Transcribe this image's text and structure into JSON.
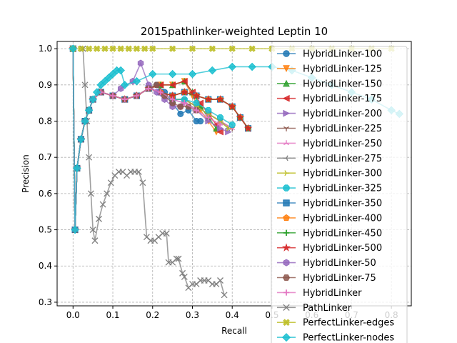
{
  "chart_data": {
    "type": "line",
    "title": "2015pathlinker-weighted Leptin 10",
    "xlabel": "Recall",
    "ylabel": "Precision",
    "xlim": [
      -0.04,
      0.85
    ],
    "ylim": [
      0.29,
      1.02
    ],
    "xticks": [
      "0.0",
      "0.1",
      "0.2",
      "0.3",
      "0.4",
      "0.5",
      "0.6",
      "0.7",
      "0.8"
    ],
    "xtick_values": [
      0.0,
      0.1,
      0.2,
      0.3,
      0.4,
      0.5,
      0.6,
      0.7,
      0.8
    ],
    "yticks": [
      "0.3",
      "0.4",
      "0.5",
      "0.6",
      "0.7",
      "0.8",
      "0.9",
      "1.0"
    ],
    "ytick_values": [
      0.3,
      0.4,
      0.5,
      0.6,
      0.7,
      0.8,
      0.9,
      1.0
    ],
    "grid": true,
    "legend_position": "right",
    "series": [
      {
        "name": "HybridLinker-100",
        "color": "#1f77b4",
        "marker": "circle",
        "x": [
          0.0,
          0.005,
          0.01,
          0.02,
          0.03,
          0.04,
          0.05,
          0.07,
          0.1,
          0.13,
          0.16,
          0.19,
          0.21,
          0.23,
          0.25,
          0.27,
          0.29,
          0.31,
          0.32
        ],
        "y": [
          1.0,
          0.5,
          0.67,
          0.75,
          0.8,
          0.83,
          0.86,
          0.88,
          0.87,
          0.86,
          0.87,
          0.89,
          0.9,
          0.88,
          0.85,
          0.82,
          0.83,
          0.8,
          0.8
        ]
      },
      {
        "name": "HybridLinker-125",
        "color": "#ff7f0e",
        "marker": "triangle-down",
        "x": [
          0.0,
          0.005,
          0.01,
          0.02,
          0.03,
          0.04,
          0.05,
          0.07,
          0.1,
          0.13,
          0.16,
          0.19,
          0.22,
          0.25,
          0.28,
          0.3,
          0.32,
          0.34,
          0.36
        ],
        "y": [
          1.0,
          0.5,
          0.67,
          0.75,
          0.8,
          0.83,
          0.86,
          0.88,
          0.87,
          0.86,
          0.87,
          0.89,
          0.9,
          0.9,
          0.91,
          0.87,
          0.83,
          0.8,
          0.77
        ]
      },
      {
        "name": "HybridLinker-150",
        "color": "#2ca02c",
        "marker": "triangle-up",
        "x": [
          0.0,
          0.005,
          0.01,
          0.02,
          0.03,
          0.04,
          0.05,
          0.07,
          0.1,
          0.13,
          0.16,
          0.19,
          0.22,
          0.25,
          0.28,
          0.3,
          0.32,
          0.34,
          0.36
        ],
        "y": [
          1.0,
          0.5,
          0.67,
          0.75,
          0.8,
          0.83,
          0.86,
          0.88,
          0.87,
          0.86,
          0.87,
          0.89,
          0.9,
          0.9,
          0.91,
          0.88,
          0.84,
          0.81,
          0.78
        ]
      },
      {
        "name": "HybridLinker-175",
        "color": "#d62728",
        "marker": "triangle-left",
        "x": [
          0.0,
          0.005,
          0.01,
          0.02,
          0.03,
          0.04,
          0.05,
          0.07,
          0.1,
          0.13,
          0.16,
          0.19,
          0.22,
          0.25,
          0.28,
          0.3,
          0.32,
          0.34,
          0.36,
          0.37
        ],
        "y": [
          1.0,
          0.5,
          0.67,
          0.75,
          0.8,
          0.83,
          0.86,
          0.88,
          0.87,
          0.86,
          0.87,
          0.89,
          0.9,
          0.9,
          0.91,
          0.88,
          0.85,
          0.82,
          0.79,
          0.77
        ]
      },
      {
        "name": "HybridLinker-200",
        "color": "#9467bd",
        "marker": "triangle-right",
        "x": [
          0.0,
          0.005,
          0.01,
          0.02,
          0.03,
          0.04,
          0.05,
          0.07,
          0.1,
          0.13,
          0.16,
          0.19,
          0.22,
          0.25,
          0.28,
          0.31,
          0.34,
          0.37,
          0.39
        ],
        "y": [
          1.0,
          0.5,
          0.67,
          0.75,
          0.8,
          0.83,
          0.86,
          0.88,
          0.87,
          0.86,
          0.87,
          0.89,
          0.88,
          0.86,
          0.85,
          0.83,
          0.8,
          0.78,
          0.77
        ]
      },
      {
        "name": "HybridLinker-225",
        "color": "#8c564b",
        "marker": "tri",
        "x": [
          0.0,
          0.005,
          0.01,
          0.02,
          0.03,
          0.04,
          0.05,
          0.07,
          0.1,
          0.13,
          0.16,
          0.19,
          0.22,
          0.25,
          0.28,
          0.31,
          0.34,
          0.37,
          0.4
        ],
        "y": [
          1.0,
          0.5,
          0.67,
          0.75,
          0.8,
          0.83,
          0.86,
          0.88,
          0.87,
          0.86,
          0.87,
          0.89,
          0.88,
          0.86,
          0.86,
          0.84,
          0.82,
          0.8,
          0.78
        ]
      },
      {
        "name": "HybridLinker-250",
        "color": "#e377c2",
        "marker": "tri-up",
        "x": [
          0.0,
          0.005,
          0.01,
          0.02,
          0.03,
          0.04,
          0.05,
          0.07,
          0.1,
          0.13,
          0.16,
          0.19,
          0.22,
          0.25,
          0.28,
          0.31,
          0.34,
          0.37,
          0.4
        ],
        "y": [
          1.0,
          0.5,
          0.67,
          0.75,
          0.8,
          0.83,
          0.86,
          0.88,
          0.87,
          0.86,
          0.87,
          0.89,
          0.88,
          0.86,
          0.86,
          0.84,
          0.82,
          0.8,
          0.78
        ]
      },
      {
        "name": "HybridLinker-275",
        "color": "#7f7f7f",
        "marker": "tri-left",
        "x": [
          0.0,
          0.005,
          0.01,
          0.02,
          0.03,
          0.04,
          0.05,
          0.07,
          0.1,
          0.13,
          0.16,
          0.19,
          0.22,
          0.25,
          0.28,
          0.31,
          0.34,
          0.37,
          0.39
        ],
        "y": [
          1.0,
          0.5,
          0.67,
          0.75,
          0.8,
          0.83,
          0.86,
          0.88,
          0.87,
          0.86,
          0.87,
          0.89,
          0.88,
          0.86,
          0.86,
          0.84,
          0.82,
          0.8,
          0.78
        ]
      },
      {
        "name": "HybridLinker-300",
        "color": "#bcbd22",
        "marker": "tri-right",
        "x": [
          0.0,
          0.005,
          0.01,
          0.02,
          0.03,
          0.04,
          0.05,
          0.07,
          0.1,
          0.13,
          0.16,
          0.19,
          0.22,
          0.25,
          0.28,
          0.31,
          0.34,
          0.37,
          0.39
        ],
        "y": [
          1.0,
          0.5,
          0.67,
          0.75,
          0.8,
          0.83,
          0.86,
          0.88,
          0.87,
          0.86,
          0.87,
          0.89,
          0.88,
          0.86,
          0.86,
          0.84,
          0.82,
          0.8,
          0.78
        ]
      },
      {
        "name": "HybridLinker-325",
        "color": "#17becf",
        "marker": "octagon",
        "x": [
          0.0,
          0.005,
          0.01,
          0.02,
          0.03,
          0.04,
          0.05,
          0.07,
          0.1,
          0.13,
          0.16,
          0.19,
          0.22,
          0.25,
          0.28,
          0.31,
          0.34,
          0.37,
          0.4
        ],
        "y": [
          1.0,
          0.5,
          0.67,
          0.75,
          0.8,
          0.83,
          0.86,
          0.88,
          0.87,
          0.86,
          0.87,
          0.89,
          0.88,
          0.86,
          0.86,
          0.85,
          0.83,
          0.81,
          0.79
        ]
      },
      {
        "name": "HybridLinker-350",
        "color": "#1f77b4",
        "marker": "square",
        "x": [
          0.0,
          0.005,
          0.01,
          0.02,
          0.03,
          0.04,
          0.05,
          0.07,
          0.1,
          0.13,
          0.16,
          0.19,
          0.22,
          0.25,
          0.28,
          0.31,
          0.34,
          0.37,
          0.4,
          0.42,
          0.44
        ],
        "y": [
          1.0,
          0.5,
          0.67,
          0.75,
          0.8,
          0.83,
          0.86,
          0.88,
          0.87,
          0.86,
          0.87,
          0.89,
          0.88,
          0.87,
          0.88,
          0.87,
          0.86,
          0.86,
          0.84,
          0.81,
          0.78
        ]
      },
      {
        "name": "HybridLinker-400",
        "color": "#ff7f0e",
        "marker": "pentagon",
        "x": [
          0.0,
          0.005,
          0.01,
          0.02,
          0.03,
          0.04,
          0.05,
          0.07,
          0.1,
          0.13,
          0.16,
          0.19,
          0.22,
          0.25,
          0.28,
          0.31,
          0.34,
          0.37,
          0.4,
          0.42,
          0.44
        ],
        "y": [
          1.0,
          0.5,
          0.67,
          0.75,
          0.8,
          0.83,
          0.86,
          0.88,
          0.87,
          0.86,
          0.87,
          0.89,
          0.88,
          0.87,
          0.88,
          0.87,
          0.86,
          0.86,
          0.84,
          0.81,
          0.78
        ]
      },
      {
        "name": "HybridLinker-450",
        "color": "#2ca02c",
        "marker": "plus",
        "x": [
          0.0,
          0.005,
          0.01,
          0.02,
          0.03,
          0.04,
          0.05,
          0.07,
          0.1,
          0.13,
          0.16,
          0.19,
          0.22,
          0.25,
          0.28,
          0.31,
          0.34,
          0.37,
          0.4,
          0.42,
          0.44
        ],
        "y": [
          1.0,
          0.5,
          0.67,
          0.75,
          0.8,
          0.83,
          0.86,
          0.88,
          0.87,
          0.86,
          0.87,
          0.89,
          0.88,
          0.87,
          0.88,
          0.87,
          0.86,
          0.86,
          0.84,
          0.81,
          0.78
        ]
      },
      {
        "name": "HybridLinker-500",
        "color": "#d62728",
        "marker": "star",
        "x": [
          0.0,
          0.005,
          0.01,
          0.02,
          0.03,
          0.04,
          0.05,
          0.07,
          0.1,
          0.13,
          0.16,
          0.19,
          0.22,
          0.25,
          0.28,
          0.31,
          0.34,
          0.37,
          0.4,
          0.42,
          0.44
        ],
        "y": [
          1.0,
          0.5,
          0.67,
          0.75,
          0.8,
          0.83,
          0.86,
          0.88,
          0.87,
          0.86,
          0.87,
          0.89,
          0.88,
          0.87,
          0.88,
          0.87,
          0.86,
          0.86,
          0.84,
          0.81,
          0.78
        ]
      },
      {
        "name": "HybridLinker-50",
        "color": "#9467bd",
        "marker": "hexagon",
        "x": [
          0.0,
          0.005,
          0.01,
          0.02,
          0.03,
          0.04,
          0.05,
          0.07,
          0.1,
          0.12,
          0.15,
          0.17,
          0.19,
          0.21,
          0.23,
          0.25,
          0.27
        ],
        "y": [
          1.0,
          0.5,
          0.67,
          0.75,
          0.8,
          0.83,
          0.86,
          0.88,
          0.87,
          0.89,
          0.91,
          0.96,
          0.9,
          0.88,
          0.86,
          0.84,
          0.84
        ]
      },
      {
        "name": "HybridLinker-75",
        "color": "#8c564b",
        "marker": "hexagon2",
        "x": [
          0.0,
          0.005,
          0.01,
          0.02,
          0.03,
          0.04,
          0.05,
          0.07,
          0.1,
          0.13,
          0.16,
          0.19,
          0.21,
          0.23,
          0.25,
          0.27,
          0.29,
          0.31
        ],
        "y": [
          1.0,
          0.5,
          0.67,
          0.75,
          0.8,
          0.83,
          0.86,
          0.88,
          0.87,
          0.86,
          0.87,
          0.89,
          0.9,
          0.87,
          0.85,
          0.84,
          0.84,
          0.83
        ]
      },
      {
        "name": "HybridLinker",
        "color": "#e377c2",
        "marker": "plus",
        "x": [
          0.0,
          0.005,
          0.01,
          0.02,
          0.03,
          0.04,
          0.05,
          0.07,
          0.1,
          0.13,
          0.16,
          0.19,
          0.22,
          0.25,
          0.28,
          0.31,
          0.34,
          0.37
        ],
        "y": [
          1.0,
          0.5,
          0.67,
          0.75,
          0.8,
          0.83,
          0.86,
          0.88,
          0.87,
          0.86,
          0.87,
          0.89,
          0.88,
          0.86,
          0.85,
          0.83,
          0.81,
          0.79
        ]
      },
      {
        "name": "PathLinker",
        "color": "#7f7f7f",
        "marker": "x",
        "x": [
          0.025,
          0.03,
          0.035,
          0.04,
          0.045,
          0.05,
          0.055,
          0.065,
          0.075,
          0.085,
          0.095,
          0.105,
          0.115,
          0.125,
          0.135,
          0.145,
          0.155,
          0.165,
          0.175,
          0.185,
          0.195,
          0.205,
          0.215,
          0.225,
          0.235,
          0.24,
          0.25,
          0.26,
          0.265,
          0.275,
          0.28,
          0.29,
          0.3,
          0.31,
          0.32,
          0.33,
          0.34,
          0.35,
          0.36,
          0.37,
          0.38
        ],
        "y": [
          1.0,
          0.9,
          0.8,
          0.7,
          0.6,
          0.5,
          0.47,
          0.53,
          0.57,
          0.6,
          0.63,
          0.65,
          0.66,
          0.66,
          0.65,
          0.66,
          0.66,
          0.66,
          0.63,
          0.48,
          0.47,
          0.47,
          0.48,
          0.49,
          0.49,
          0.41,
          0.41,
          0.42,
          0.42,
          0.38,
          0.37,
          0.34,
          0.35,
          0.35,
          0.36,
          0.36,
          0.36,
          0.35,
          0.35,
          0.36,
          0.32
        ]
      },
      {
        "name": "PerfectLinker-edges",
        "color": "#bcbd22",
        "marker": "x-filled",
        "x": [
          0.0,
          0.02,
          0.04,
          0.06,
          0.08,
          0.1,
          0.12,
          0.14,
          0.16,
          0.18,
          0.2,
          0.25,
          0.3,
          0.35,
          0.4,
          0.45,
          0.5,
          0.55,
          0.6,
          0.65,
          0.7,
          0.75,
          0.8
        ],
        "y": [
          1.0,
          1.0,
          1.0,
          1.0,
          1.0,
          1.0,
          1.0,
          1.0,
          1.0,
          1.0,
          1.0,
          1.0,
          1.0,
          1.0,
          1.0,
          1.0,
          1.0,
          1.0,
          1.0,
          1.0,
          1.0,
          1.0,
          1.0
        ]
      },
      {
        "name": "PerfectLinker-nodes",
        "color": "#17becf",
        "marker": "diamond",
        "x": [
          0.0,
          0.005,
          0.01,
          0.02,
          0.03,
          0.04,
          0.05,
          0.06,
          0.07,
          0.08,
          0.09,
          0.1,
          0.11,
          0.12,
          0.13,
          0.16,
          0.2,
          0.25,
          0.3,
          0.35,
          0.4,
          0.45,
          0.5,
          0.55,
          0.6,
          0.65,
          0.7,
          0.75,
          0.8,
          0.82
        ],
        "y": [
          1.0,
          0.5,
          0.67,
          0.75,
          0.8,
          0.83,
          0.86,
          0.88,
          0.9,
          0.91,
          0.92,
          0.93,
          0.94,
          0.94,
          0.9,
          0.91,
          0.93,
          0.93,
          0.93,
          0.94,
          0.95,
          0.95,
          0.95,
          0.94,
          0.92,
          0.9,
          0.88,
          0.86,
          0.83,
          0.82
        ]
      }
    ]
  }
}
